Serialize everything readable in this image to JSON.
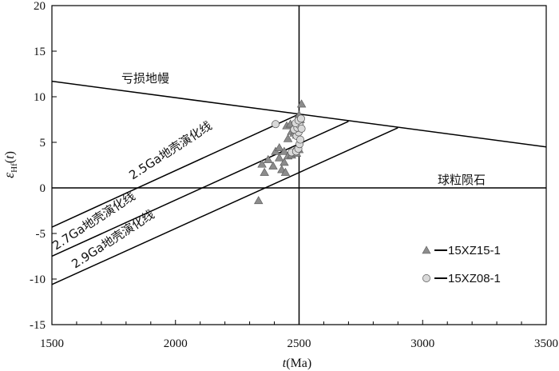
{
  "chart_data": {
    "type": "scatter",
    "xlabel": {
      "italic": "t",
      "rest": "(Ma)"
    },
    "ylabel": {
      "italic_main": "ε",
      "sub": "Hf",
      "rest_open": "(",
      "italic_t": "t",
      "rest_close": ")"
    },
    "xlim": [
      1500,
      3500
    ],
    "ylim": [
      -15,
      20
    ],
    "x_ticks": [
      1500,
      2000,
      2500,
      3000,
      3500
    ],
    "y_ticks": [
      -15,
      -10,
      -5,
      0,
      5,
      10,
      15,
      20
    ],
    "x_minor_step": 100,
    "grid": false,
    "reference_lines": [
      {
        "name": "depleted-mantle",
        "label": "亏损地幔",
        "points": [
          [
            1500,
            11.7
          ],
          [
            3500,
            4.5
          ]
        ]
      },
      {
        "name": "chondrite",
        "label": "球粒陨石",
        "points": [
          [
            1500,
            0
          ],
          [
            3500,
            0
          ]
        ]
      },
      {
        "name": "crust-2.5ga",
        "label": "2.5Ga地壳演化线",
        "points": [
          [
            1500,
            -4.3
          ],
          [
            2500,
            8.1
          ]
        ]
      },
      {
        "name": "crust-2.7ga",
        "label": "2.7Ga地壳演化线",
        "points": [
          [
            1500,
            -7.5
          ],
          [
            2700,
            7.3
          ]
        ]
      },
      {
        "name": "crust-2.9ga",
        "label": "2.9Ga地壳演化线",
        "points": [
          [
            1500,
            -10.6
          ],
          [
            2900,
            6.6
          ]
        ]
      },
      {
        "name": "vertical-2500",
        "label": "",
        "points": [
          [
            2500,
            -15
          ],
          [
            2500,
            20
          ]
        ]
      }
    ],
    "series": [
      {
        "name": "15XZ15-1",
        "marker": "triangle",
        "color": "#8c8c8c",
        "points": [
          [
            2336,
            -1.4
          ],
          [
            2350,
            2.6
          ],
          [
            2375,
            3.1
          ],
          [
            2360,
            1.7
          ],
          [
            2395,
            2.4
          ],
          [
            2420,
            3.3
          ],
          [
            2430,
            2.0
          ],
          [
            2440,
            2.8
          ],
          [
            2445,
            1.7
          ],
          [
            2405,
            4.0
          ],
          [
            2420,
            4.4
          ],
          [
            2440,
            4.0
          ],
          [
            2455,
            3.5
          ],
          [
            2470,
            3.6
          ],
          [
            2480,
            4.0
          ],
          [
            2490,
            3.8
          ],
          [
            2500,
            4.2
          ],
          [
            2455,
            5.4
          ],
          [
            2470,
            6.2
          ],
          [
            2480,
            6.0
          ],
          [
            2450,
            6.8
          ],
          [
            2465,
            7.0
          ],
          [
            2490,
            5.8
          ],
          [
            2500,
            8.0
          ],
          [
            2510,
            9.2
          ],
          [
            2505,
            7.5
          ]
        ]
      },
      {
        "name": "15XZ08-1",
        "marker": "circle",
        "color": "#d9d9d9",
        "points": [
          [
            2405,
            7.0
          ],
          [
            2470,
            3.9
          ],
          [
            2488,
            4.0
          ],
          [
            2497,
            4.3
          ],
          [
            2502,
            4.8
          ],
          [
            2490,
            5.7
          ],
          [
            2498,
            6.1
          ],
          [
            2480,
            6.4
          ],
          [
            2493,
            6.6
          ],
          [
            2502,
            6.9
          ],
          [
            2486,
            7.1
          ],
          [
            2498,
            7.4
          ],
          [
            2508,
            7.6
          ],
          [
            2510,
            6.5
          ],
          [
            2505,
            5.3
          ]
        ]
      }
    ]
  }
}
